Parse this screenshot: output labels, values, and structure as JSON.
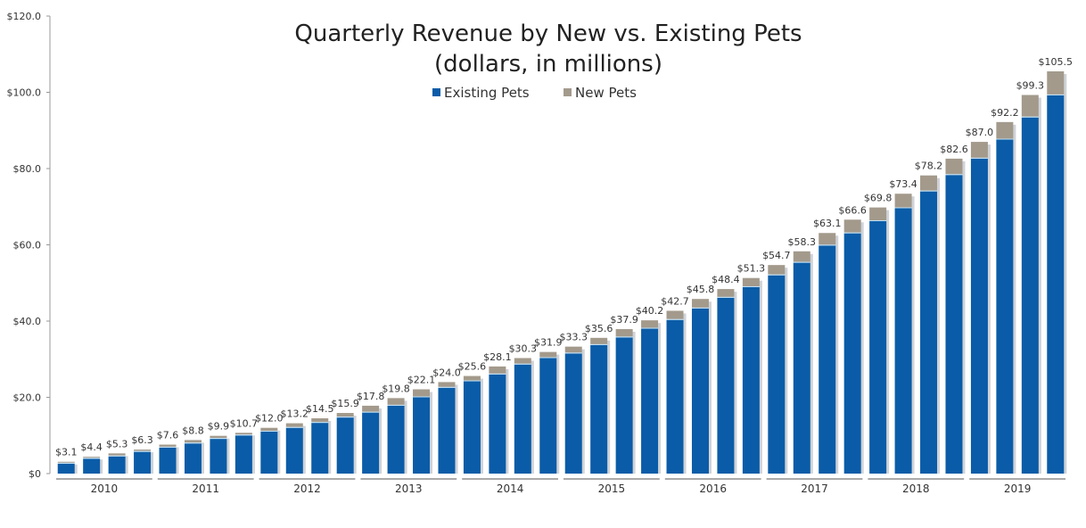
{
  "chart_data": {
    "type": "bar",
    "stacked": true,
    "title": "Quarterly Revenue by New vs. Existing Pets",
    "subtitle": "(dollars, in millions)",
    "xlabel": "",
    "ylabel": "",
    "ylim": [
      0,
      120
    ],
    "y_ticks": [
      "$0",
      "$20.0",
      "$40.0",
      "$60.0",
      "$80.0",
      "$100.0",
      "$120.0"
    ],
    "grid": false,
    "legend_placement": "top-center",
    "year_groups": [
      "2010",
      "2011",
      "2012",
      "2013",
      "2014",
      "2015",
      "2016",
      "2017",
      "2018",
      "2019"
    ],
    "quarters_per_year": 4,
    "series": [
      {
        "name": "Existing Pets",
        "color": "#0a5ca8",
        "values": [
          2.6,
          3.9,
          4.5,
          5.7,
          6.8,
          7.9,
          9.1,
          10.0,
          11.0,
          12.0,
          13.3,
          14.7,
          16.0,
          17.8,
          20.0,
          22.5,
          24.2,
          26.0,
          28.6,
          30.3,
          31.5,
          33.7,
          35.7,
          38.0,
          40.3,
          43.3,
          46.1,
          48.9,
          52.0,
          55.3,
          59.8,
          63.0,
          66.2,
          69.6,
          74.0,
          78.3,
          82.6,
          87.6,
          93.4,
          99.2
        ]
      },
      {
        "name": "New Pets",
        "color": "#a39a8c",
        "values": [
          0.5,
          0.5,
          0.8,
          0.6,
          0.8,
          0.9,
          0.8,
          0.7,
          1.0,
          1.2,
          1.2,
          1.2,
          1.8,
          2.0,
          2.1,
          1.5,
          1.4,
          2.1,
          1.7,
          1.6,
          1.8,
          1.9,
          2.2,
          2.2,
          2.4,
          2.5,
          2.3,
          2.4,
          2.7,
          3.0,
          3.3,
          3.6,
          3.6,
          3.8,
          4.2,
          4.3,
          4.4,
          4.6,
          5.9,
          6.3
        ]
      }
    ],
    "totals": [
      3.1,
      4.4,
      5.3,
      6.3,
      7.6,
      8.8,
      9.9,
      10.7,
      12.0,
      13.2,
      14.5,
      15.9,
      17.8,
      19.8,
      22.1,
      24.0,
      25.6,
      28.1,
      30.3,
      31.9,
      33.3,
      35.6,
      37.9,
      40.2,
      42.7,
      45.8,
      48.4,
      51.3,
      54.7,
      58.3,
      63.1,
      66.6,
      69.8,
      73.4,
      78.2,
      82.6,
      87.0,
      92.2,
      99.3,
      105.5
    ],
    "total_labels": [
      "$3.1",
      "$4.4",
      "$5.3",
      "$6.3",
      "$7.6",
      "$8.8",
      "$9.9",
      "$10.7",
      "$12.0",
      "$13.2",
      "$14.5",
      "$15.9",
      "$17.8",
      "$19.8",
      "$22.1",
      "$24.0",
      "$25.6",
      "$28.1",
      "$30.3",
      "$31.9",
      "$33.3",
      "$35.6",
      "$37.9",
      "$40.2",
      "$42.7",
      "$45.8",
      "$48.4",
      "$51.3",
      "$54.7",
      "$58.3",
      "$63.1",
      "$66.6",
      "$69.8",
      "$73.4",
      "$78.2",
      "$82.6",
      "$87.0",
      "$92.2",
      "$99.3",
      "$105.5"
    ]
  }
}
